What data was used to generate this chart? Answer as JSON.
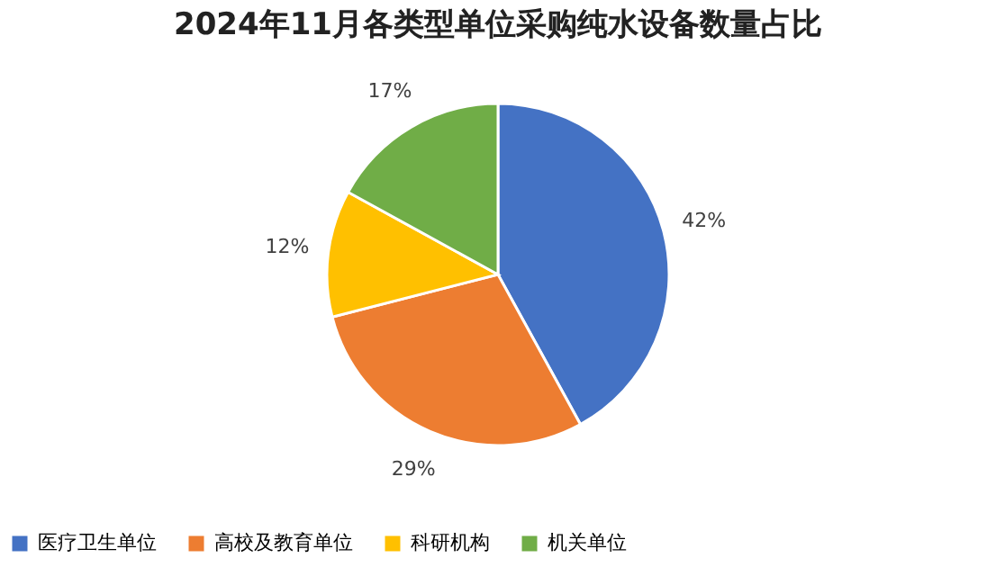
{
  "chart_data": {
    "type": "pie",
    "title": "2024年11月各类型单位采购纯水设备数量占比",
    "categories": [
      "医疗卫生单位",
      "高校及教育单位",
      "科研机构",
      "机关单位"
    ],
    "values": [
      42,
      29,
      12,
      17
    ],
    "colors": [
      "#4472c4",
      "#ed7d31",
      "#ffc000",
      "#70ad47"
    ],
    "value_labels": [
      "42%",
      "29%",
      "12%",
      "17%"
    ],
    "legend": "bottom"
  }
}
